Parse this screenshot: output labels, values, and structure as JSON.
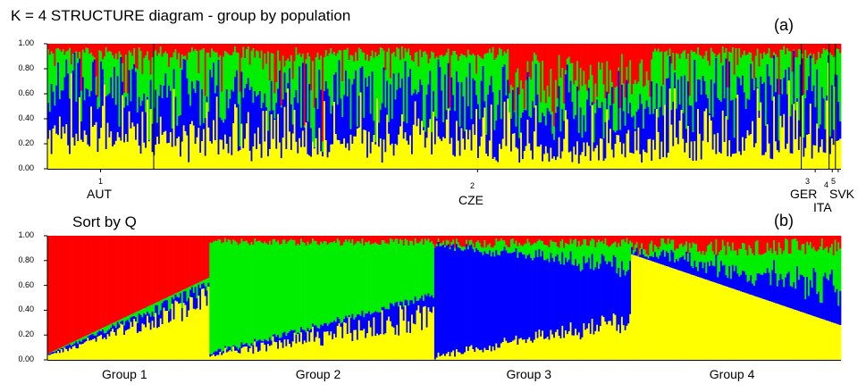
{
  "title": "K = 4   STRUCTURE diagram - group by population",
  "subtitle": "Sort by Q",
  "panel_a_label": "(a)",
  "panel_b_label": "(b)",
  "colors": {
    "cluster1": "#ff0000",
    "cluster2": "#00ee00",
    "cluster3": "#0000ff",
    "cluster4": "#ffff00"
  },
  "chart_data": [
    {
      "type": "bar",
      "stacked": true,
      "panel": "(a)",
      "ylim": [
        0,
        1
      ],
      "yticks": [
        "1.00",
        "0.80",
        "0.60",
        "0.40",
        "0.20",
        "0.00"
      ],
      "populations": [
        {
          "index": "1",
          "name": "AUT",
          "share": 0.134
        },
        {
          "index": "2",
          "name": "CZE",
          "share": 0.816
        },
        {
          "index": "3",
          "name": "GER",
          "share": 0.035
        },
        {
          "index": "4",
          "name": "ITA",
          "share": 0.008
        },
        {
          "index": "5",
          "name": "SVK",
          "share": 0.007
        }
      ],
      "series": [
        "cluster1",
        "cluster2",
        "cluster3",
        "cluster4"
      ],
      "individuals_approx": 480
    },
    {
      "type": "bar",
      "stacked": true,
      "panel": "(b)",
      "ylim": [
        0,
        1
      ],
      "yticks": [
        "1.00",
        "0.80",
        "0.60",
        "0.40",
        "0.20",
        "0.00"
      ],
      "groups": [
        {
          "name": "Group 1",
          "share": 0.205,
          "dominant": "cluster1",
          "dominant_range": [
            0.95,
            0.34
          ]
        },
        {
          "name": "Group 2",
          "share": 0.283,
          "dominant": "cluster2",
          "dominant_range": [
            0.9,
            0.43
          ]
        },
        {
          "name": "Group 3",
          "share": 0.248,
          "dominant": "cluster3",
          "dominant_range": [
            0.9,
            0.43
          ]
        },
        {
          "name": "Group 4",
          "share": 0.264,
          "dominant": "cluster4",
          "dominant_range": [
            0.85,
            0.28
          ]
        }
      ],
      "series": [
        "cluster1",
        "cluster2",
        "cluster3",
        "cluster4"
      ],
      "individuals_approx": 480
    }
  ]
}
